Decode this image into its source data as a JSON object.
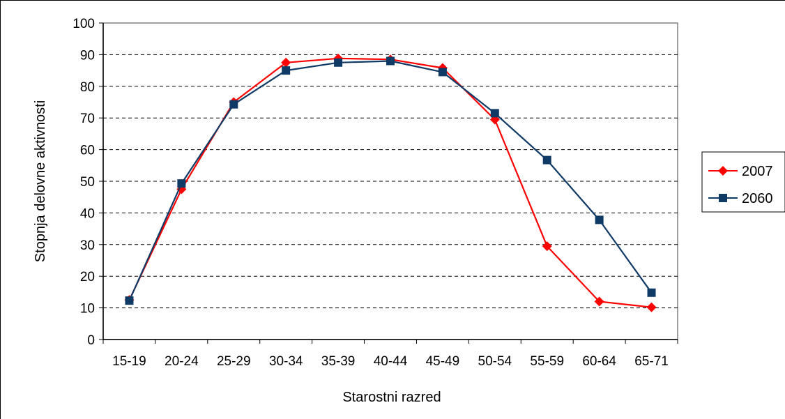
{
  "chart_data": {
    "type": "line",
    "title": "",
    "xlabel": "Starostni razred",
    "ylabel": "Stopnja delovne aktivnosti",
    "categories": [
      "15-19",
      "20-24",
      "25-29",
      "30-34",
      "35-39",
      "40-44",
      "45-49",
      "50-54",
      "55-59",
      "60-64",
      "65-71"
    ],
    "ylim": [
      0,
      100
    ],
    "yticks": [
      "0",
      "10",
      "20",
      "30",
      "40",
      "50",
      "60",
      "70",
      "80",
      "90",
      "100"
    ],
    "grid": true,
    "legend_position": "right",
    "series": [
      {
        "name": "2007",
        "color": "#ff0000",
        "marker": "diamond",
        "values": [
          12.5,
          47.5,
          75,
          87.5,
          88.8,
          88.5,
          85.8,
          69.5,
          29.5,
          12,
          10.2
        ]
      },
      {
        "name": "2060",
        "color": "#0f3a66",
        "marker": "square",
        "values": [
          12.3,
          49.3,
          74.3,
          85,
          87.5,
          88,
          84.5,
          71.5,
          56.7,
          37.8,
          14.8
        ]
      }
    ]
  }
}
